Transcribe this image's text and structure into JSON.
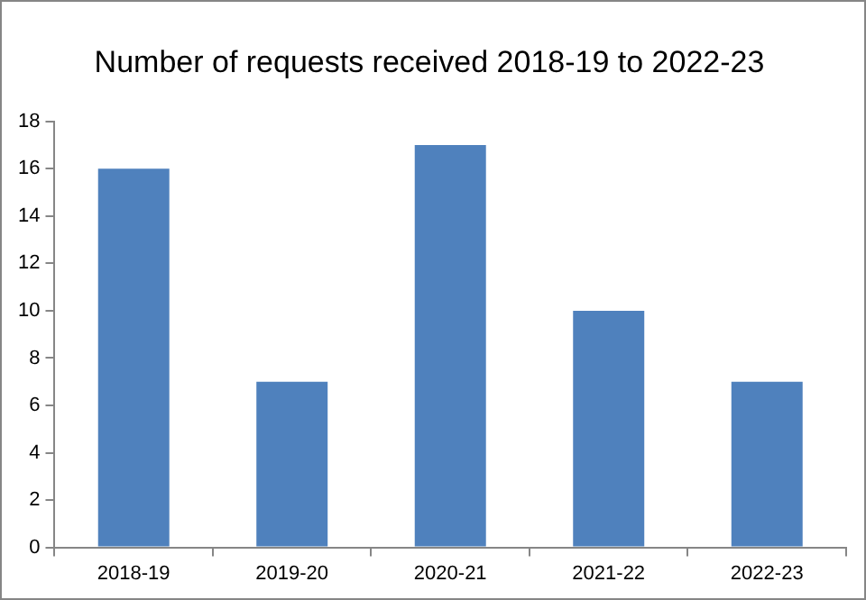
{
  "chart_data": {
    "type": "bar",
    "title": "Number of requests received 2018-19 to 2022-23",
    "categories": [
      "2018-19",
      "2019-20",
      "2020-21",
      "2021-22",
      "2022-23"
    ],
    "values": [
      16,
      7,
      17,
      10,
      7
    ],
    "color": "#4f81bd",
    "ylim": [
      0,
      18
    ],
    "yticks": [
      0,
      2,
      4,
      6,
      8,
      10,
      12,
      14,
      16,
      18
    ],
    "grid": false,
    "legend": false
  }
}
